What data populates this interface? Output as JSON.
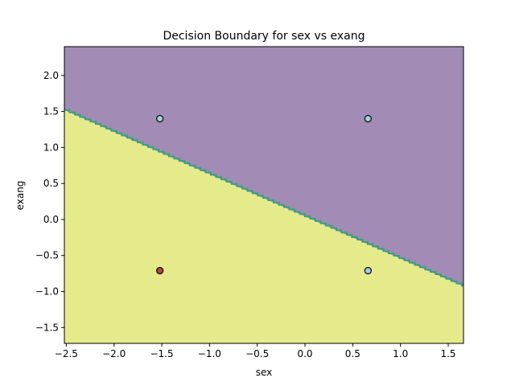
{
  "chart_data": {
    "type": "scatter",
    "title": "Decision Boundary for sex vs exang",
    "xlabel": "sex",
    "ylabel": "exang",
    "xlim": [
      -2.52,
      1.66
    ],
    "ylim": [
      -1.72,
      2.4
    ],
    "x_ticks": [
      -2.5,
      -2.0,
      -1.5,
      -1.0,
      -0.5,
      0.0,
      0.5,
      1.0,
      1.5
    ],
    "x_tick_labels": [
      "−2.5",
      "−2.0",
      "−1.5",
      "−1.0",
      "−0.5",
      "0.0",
      "0.5",
      "1.0",
      "1.5"
    ],
    "y_ticks": [
      -1.5,
      -1.0,
      -0.5,
      0.0,
      0.5,
      1.0,
      1.5,
      2.0
    ],
    "y_tick_labels": [
      "−1.5",
      "−1.0",
      "−0.5",
      "0.0",
      "0.5",
      "1.0",
      "1.5",
      "2.0"
    ],
    "grid": false,
    "decision_boundary": {
      "line_points": [
        [
          -2.52,
          1.52
        ],
        [
          1.66,
          -0.93
        ]
      ],
      "region_above_color": "#a28bb5",
      "region_below_color": "#e5eb8b",
      "boundary_color": "#3aa17e"
    },
    "points": [
      {
        "x": -1.52,
        "y": 1.4,
        "color": "#a6cee3",
        "class": 0
      },
      {
        "x": 0.66,
        "y": 1.4,
        "color": "#a6cee3",
        "class": 0
      },
      {
        "x": -1.52,
        "y": -0.71,
        "color": "#b2463a",
        "class": 1
      },
      {
        "x": 0.66,
        "y": -0.71,
        "color": "#a6cee3",
        "class": 0
      }
    ]
  }
}
